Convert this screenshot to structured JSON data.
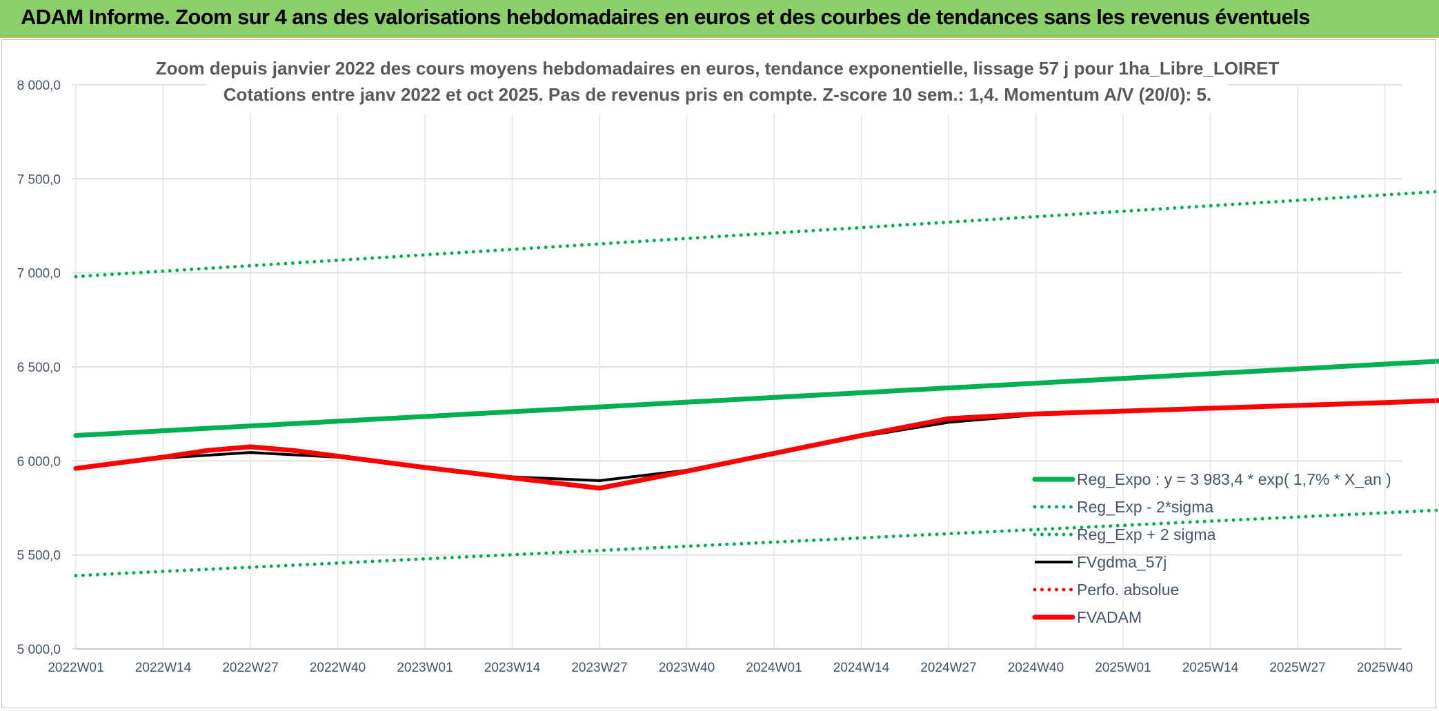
{
  "header": {
    "title": "ADAM Informe. Zoom sur 4 ans des valorisations hebdomadaires en euros et des courbes de tendances sans les revenus éventuels"
  },
  "colors": {
    "header_bg": "#8ccf6a",
    "trend_green": "#00b050",
    "fvadam_red": "#ff0000",
    "fvgdma_black": "#000000",
    "grid": "#d9d9d9",
    "text": "#44546a"
  },
  "chart_data": {
    "type": "line",
    "title": "Zoom depuis janvier 2022 des cours moyens hebdomadaires en euros, tendance exponentielle, lissage 57 j pour 1ha_Libre_LOIRET",
    "subtitle": "Cotations entre janv 2022 et oct 2025. Pas de revenus pris en compte. Z-score 10 sem.: 1,4. Momentum A/V (20/0): 5.",
    "xlabel": "",
    "ylabel": "",
    "ylim": [
      5000,
      8000
    ],
    "yticks": [
      "5 000,0",
      "5 500,0",
      "6 000,0",
      "6 500,0",
      "7 000,0",
      "7 500,0",
      "8 000,0"
    ],
    "xticks": [
      "2022W01",
      "2022W14",
      "2022W27",
      "2022W40",
      "2023W01",
      "2023W14",
      "2023W27",
      "2023W40",
      "2024W01",
      "2024W14",
      "2024W27",
      "2024W40",
      "2025W01",
      "2025W14",
      "2025W27",
      "2025W40"
    ],
    "xlim_ticks": [
      0,
      16.4
    ],
    "grid": true,
    "legend_position": "right",
    "series": [
      {
        "name": "Reg_Expo : y = 3 983,4 * exp( 1,7% *  X_an )",
        "style": "solid-thick",
        "color": "#00b050",
        "x": [
          0,
          16.4
        ],
        "y": [
          6135,
          6550
        ]
      },
      {
        "name": "Reg_Exp - 2*sigma",
        "style": "dotted",
        "color": "#00b050",
        "x": [
          0,
          16.4
        ],
        "y": [
          5390,
          5755
        ]
      },
      {
        "name": "Reg_Exp + 2 sigma",
        "style": "dotted",
        "color": "#00b050",
        "x": [
          0,
          16.4
        ],
        "y": [
          6980,
          7455
        ]
      },
      {
        "name": "FVgdma_57j",
        "style": "solid",
        "color": "#000000",
        "x": [
          0,
          1,
          2,
          3,
          4,
          5,
          6,
          7,
          8,
          9,
          10,
          10.5,
          11
        ],
        "y": [
          5960,
          6015,
          6045,
          6020,
          5965,
          5915,
          5895,
          5950,
          6035,
          6130,
          6205,
          6225,
          6245
        ]
      },
      {
        "name": "Perfo. absolue",
        "style": "dotted",
        "color": "#ff0000",
        "x": [],
        "y": []
      },
      {
        "name": "FVADAM",
        "style": "solid-thick",
        "color": "#ff0000",
        "x": [
          0,
          1,
          1.5,
          2,
          2.5,
          3,
          4,
          5,
          6,
          7,
          8,
          9,
          10,
          11,
          12,
          13,
          14,
          15,
          16.4
        ],
        "y": [
          5960,
          6020,
          6055,
          6075,
          6055,
          6025,
          5965,
          5910,
          5855,
          5945,
          6040,
          6135,
          6225,
          6250,
          6265,
          6280,
          6295,
          6310,
          6335
        ]
      }
    ]
  }
}
